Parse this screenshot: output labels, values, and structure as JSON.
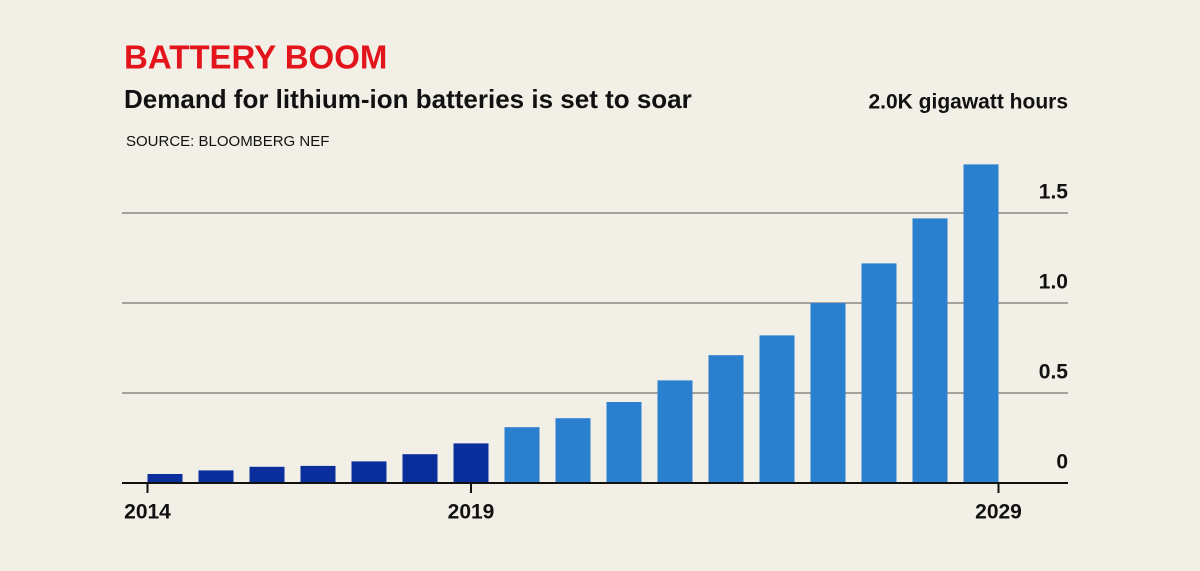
{
  "chart_data": {
    "type": "bar",
    "title": "BATTERY BOOM",
    "subtitle": "Demand for lithium-ion batteries is set to soar",
    "source": "SOURCE: BLOOMBERG NEF",
    "categories": [
      "2014",
      null,
      null,
      null,
      null,
      null,
      "2019",
      null,
      null,
      null,
      null,
      null,
      null,
      null,
      null,
      null,
      "2029"
    ],
    "values": [
      0.05,
      0.07,
      0.09,
      0.095,
      0.12,
      0.16,
      0.22,
      0.31,
      0.36,
      0.45,
      0.57,
      0.71,
      0.82,
      1.0,
      1.22,
      1.47,
      1.77
    ],
    "colors": [
      "#0a2f9c",
      "#0a2f9c",
      "#0a2f9c",
      "#0a2f9c",
      "#0a2f9c",
      "#0a2f9c",
      "#0a2f9c",
      "#2a7fce",
      "#2a7fce",
      "#2a7fce",
      "#2a7fce",
      "#2a7fce",
      "#2a7fce",
      "#2a7fce",
      "#2a7fce",
      "#2a7fce",
      "#2a7fce"
    ],
    "ylim": [
      0,
      2
    ],
    "yticks": [
      0,
      0.5,
      {
        "value": 1,
        "label": "1.0"
      },
      1.5,
      {
        "value": 2,
        "label": "2.0K gigawatt hours"
      }
    ],
    "grid": true
  }
}
